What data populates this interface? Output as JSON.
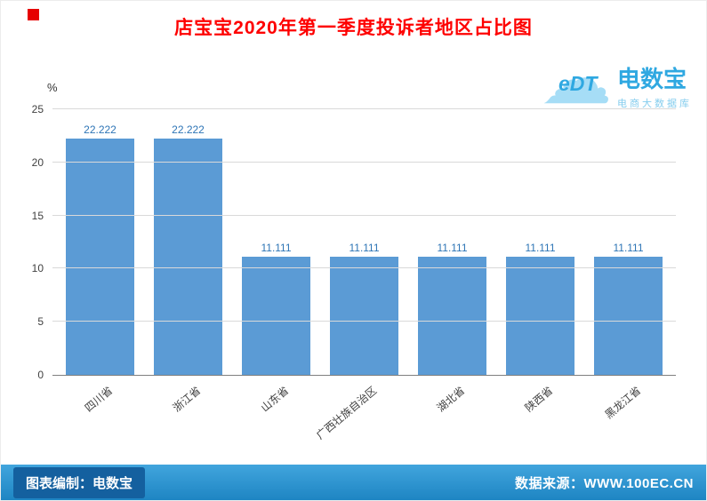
{
  "header": {
    "title": "店宝宝2020年第一季度投诉者地区占比图"
  },
  "logo": {
    "cloud": "eDT",
    "name": "电数宝",
    "tagline": "电商大数据库"
  },
  "chart_data": {
    "type": "bar",
    "title": "店宝宝2020年第一季度投诉者地区占比图",
    "xlabel": "",
    "ylabel": "%",
    "ylim": [
      0,
      25
    ],
    "yticks": [
      0,
      5,
      10,
      15,
      20,
      25
    ],
    "grid": true,
    "legend_position": "none",
    "categories": [
      "四川省",
      "浙江省",
      "山东省",
      "广西壮族自治区",
      "湖北省",
      "陕西省",
      "黑龙江省"
    ],
    "values": [
      22.222,
      22.222,
      11.111,
      11.111,
      11.111,
      11.111,
      11.111
    ],
    "value_labels": [
      "22.222",
      "22.222",
      "11.111",
      "11.111",
      "11.111",
      "11.111",
      "11.111"
    ],
    "bar_color": "#5b9bd5",
    "value_label_color": "#2e75b6"
  },
  "footer": {
    "left": "图表编制：电数宝",
    "right": "数据来源：WWW.100EC.CN"
  }
}
